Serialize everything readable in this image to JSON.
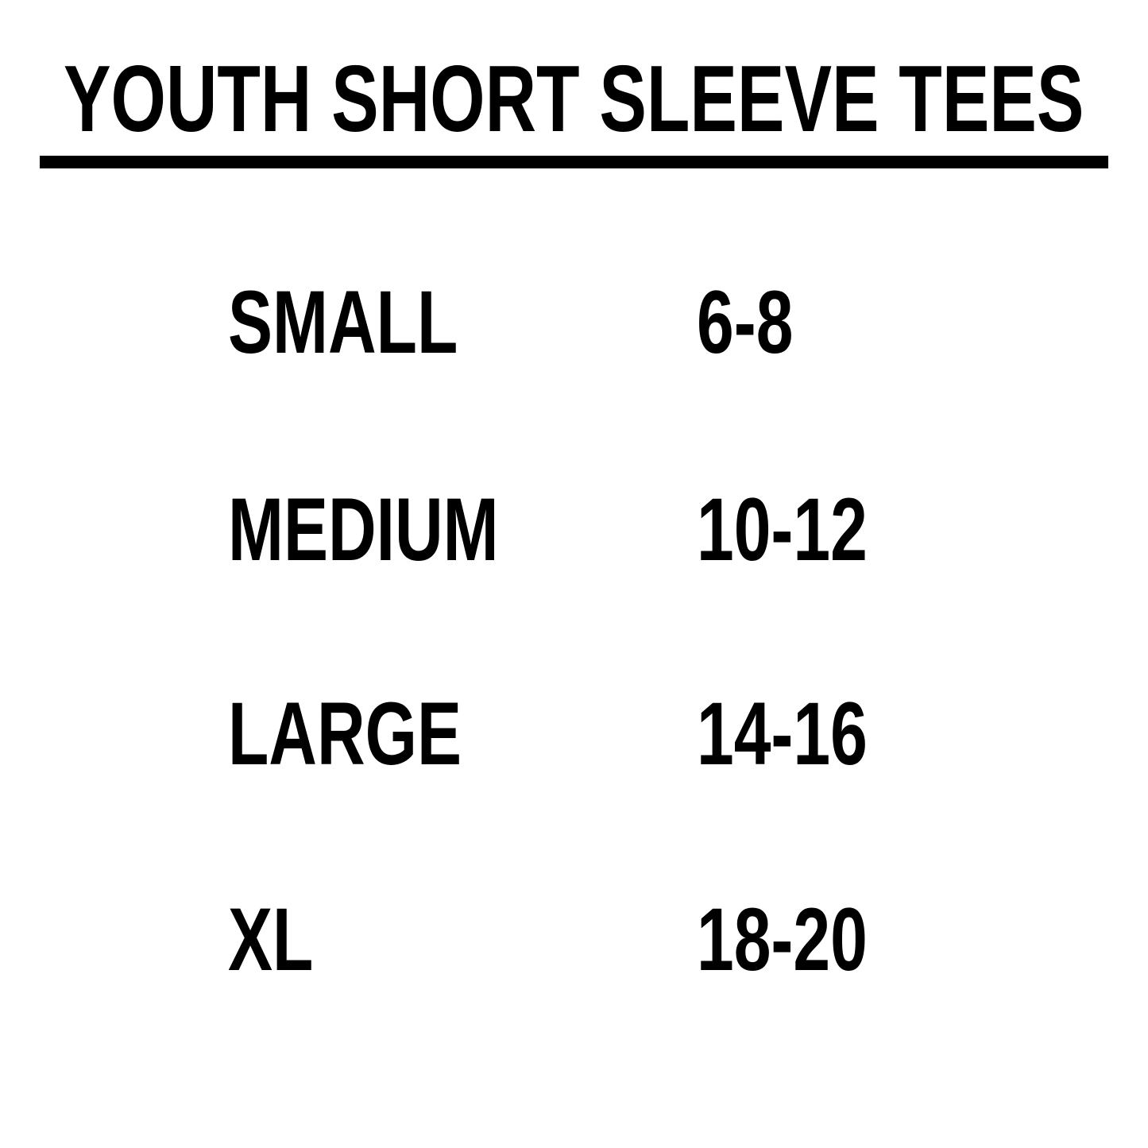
{
  "title": "YOUTH SHORT SLEEVE TEES",
  "colors": {
    "background": "#ffffff",
    "text": "#000000",
    "rule": "#000000"
  },
  "size_table": {
    "rows": [
      {
        "size": "SMALL",
        "range": "6-8"
      },
      {
        "size": "MEDIUM",
        "range": "10-12"
      },
      {
        "size": "LARGE",
        "range": "14-16"
      },
      {
        "size": "XL",
        "range": "18-20"
      }
    ]
  },
  "chart_data": {
    "type": "table",
    "title": "YOUTH SHORT SLEEVE TEES",
    "rows": [
      [
        "SMALL",
        "6-8"
      ],
      [
        "MEDIUM",
        "10-12"
      ],
      [
        "LARGE",
        "14-16"
      ],
      [
        "XL",
        "18-20"
      ]
    ]
  }
}
